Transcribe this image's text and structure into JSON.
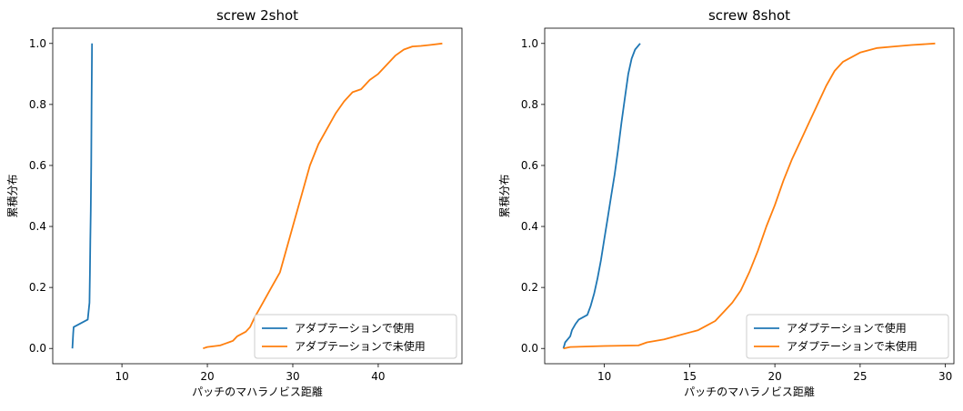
{
  "charts": [
    {
      "title": "screw 2shot",
      "xlabel": "パッチのマハラノビス距離",
      "ylabel": "累積分布",
      "xlim": [
        1.9,
        49.8
      ],
      "ylim": [
        -0.05,
        1.05
      ],
      "xticks": [
        10,
        20,
        30,
        40
      ],
      "yticks": [
        0.0,
        0.2,
        0.4,
        0.6,
        0.8,
        1.0
      ],
      "legend_position": "lower-right",
      "legend_entries": [
        "アダプテーションで使用",
        "アダプテーションで未使用"
      ]
    },
    {
      "title": "screw 8shot",
      "xlabel": "パッチのマハラノビス距離",
      "ylabel": "累積分布",
      "xlim": [
        6.5,
        30.5
      ],
      "ylim": [
        -0.05,
        1.05
      ],
      "xticks": [
        10,
        15,
        20,
        25,
        30
      ],
      "yticks": [
        0.0,
        0.2,
        0.4,
        0.6,
        0.8,
        1.0
      ],
      "legend_position": "lower-right",
      "legend_entries": [
        "アダプテーションで使用",
        "アダプテーションで未使用"
      ]
    }
  ],
  "chart_data": [
    {
      "type": "line",
      "title": "screw 2shot",
      "xlabel": "パッチのマハラノビス距離",
      "ylabel": "累積分布",
      "xlim": [
        1.9,
        49.8
      ],
      "ylim": [
        -0.05,
        1.05
      ],
      "grid": false,
      "legend": "lower-right",
      "series": [
        {
          "name": "アダプテーションで使用",
          "color": "#1f77b4",
          "x": [
            4.2,
            4.3,
            4.35,
            6.0,
            6.2,
            6.25,
            6.3,
            6.35,
            6.4,
            6.45,
            6.5
          ],
          "y": [
            0.0,
            0.05,
            0.07,
            0.095,
            0.15,
            0.25,
            0.35,
            0.45,
            0.6,
            0.8,
            1.0
          ]
        },
        {
          "name": "アダプテーションで未使用",
          "color": "#ff7f0e",
          "x": [
            19.5,
            20.0,
            21.5,
            22.0,
            23.0,
            23.5,
            24.5,
            25.0,
            25.5,
            26.5,
            27.5,
            28.5,
            29.0,
            30.0,
            31.0,
            32.0,
            33.0,
            34.0,
            35.0,
            36.0,
            37.0,
            38.0,
            39.0,
            40.0,
            41.0,
            42.0,
            43.0,
            44.0,
            45.0,
            46.0,
            47.5
          ],
          "y": [
            0.0,
            0.005,
            0.01,
            0.015,
            0.025,
            0.04,
            0.055,
            0.07,
            0.1,
            0.15,
            0.2,
            0.25,
            0.3,
            0.4,
            0.5,
            0.6,
            0.67,
            0.72,
            0.77,
            0.81,
            0.84,
            0.85,
            0.88,
            0.9,
            0.93,
            0.96,
            0.98,
            0.99,
            0.992,
            0.995,
            1.0
          ]
        }
      ]
    },
    {
      "type": "line",
      "title": "screw 8shot",
      "xlabel": "パッチのマハラノビス距離",
      "ylabel": "累積分布",
      "xlim": [
        6.5,
        30.5
      ],
      "ylim": [
        -0.05,
        1.05
      ],
      "grid": false,
      "legend": "lower-right",
      "series": [
        {
          "name": "アダプテーションで使用",
          "color": "#1f77b4",
          "x": [
            7.6,
            7.7,
            8.0,
            8.1,
            8.3,
            8.5,
            9.0,
            9.2,
            9.4,
            9.6,
            9.8,
            10.0,
            10.2,
            10.4,
            10.6,
            10.8,
            11.0,
            11.2,
            11.4,
            11.6,
            11.8,
            12.1
          ],
          "y": [
            0.0,
            0.02,
            0.04,
            0.06,
            0.08,
            0.095,
            0.11,
            0.14,
            0.18,
            0.23,
            0.29,
            0.36,
            0.43,
            0.5,
            0.57,
            0.65,
            0.74,
            0.82,
            0.9,
            0.95,
            0.98,
            1.0
          ]
        },
        {
          "name": "アダプテーションで未使用",
          "color": "#ff7f0e",
          "x": [
            7.6,
            8.0,
            10.0,
            12.0,
            12.5,
            13.5,
            14.5,
            15.5,
            16.0,
            16.5,
            17.0,
            17.5,
            18.0,
            18.5,
            19.0,
            19.5,
            20.0,
            20.5,
            21.0,
            21.5,
            22.0,
            22.5,
            23.0,
            23.5,
            24.0,
            25.0,
            26.0,
            27.0,
            28.0,
            29.4
          ],
          "y": [
            0.0,
            0.005,
            0.008,
            0.01,
            0.02,
            0.03,
            0.045,
            0.06,
            0.075,
            0.09,
            0.12,
            0.15,
            0.19,
            0.25,
            0.32,
            0.4,
            0.47,
            0.55,
            0.62,
            0.68,
            0.74,
            0.8,
            0.86,
            0.91,
            0.94,
            0.97,
            0.985,
            0.99,
            0.995,
            1.0
          ]
        }
      ]
    }
  ]
}
